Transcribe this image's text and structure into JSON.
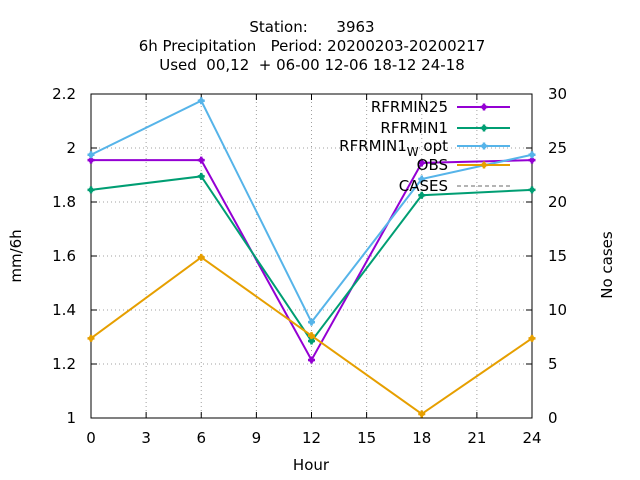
{
  "chart_data": {
    "type": "line",
    "title_lines": [
      "Station:      3963",
      "6h Precipitation   Period: 20200203-20200217",
      "Used  00,12  + 06-00 12-06 18-12 24-18"
    ],
    "xlabel": "Hour",
    "ylabel": "mm/6h",
    "y2label": "No cases",
    "x_ticks": [
      "0",
      "3",
      "6",
      "9",
      "12",
      "15",
      "18",
      "21",
      "24"
    ],
    "y_ticks": [
      "1",
      "1.2",
      "1.4",
      "1.6",
      "1.8",
      "2",
      "2.2"
    ],
    "y2_ticks": [
      "0",
      "5",
      "10",
      "15",
      "20",
      "25",
      "30"
    ],
    "xlim": [
      0,
      24
    ],
    "ylim": [
      1,
      2.2
    ],
    "y2lim": [
      0,
      30
    ],
    "grid": true,
    "legend_position": "top-right",
    "series": [
      {
        "name": "RFRMIN25",
        "legend_label": "RFRMIN25",
        "color": "#9400d3",
        "x": [
          0,
          6,
          12,
          18,
          24
        ],
        "values": [
          1.955,
          1.955,
          1.215,
          1.945,
          1.955
        ]
      },
      {
        "name": "RFRMIN1",
        "legend_label": "RFRMIN1",
        "color": "#009e73",
        "x": [
          0,
          6,
          12,
          18,
          24
        ],
        "values": [
          1.845,
          1.895,
          1.285,
          1.825,
          1.845
        ]
      },
      {
        "name": "RFRMIN1_w opt",
        "legend_label": "RFRMIN1",
        "legend_sub": "W",
        "legend_suffix": " opt",
        "color": "#56b4e9",
        "x": [
          0,
          6,
          12,
          18,
          24
        ],
        "values": [
          1.975,
          2.175,
          1.355,
          1.885,
          1.975
        ]
      },
      {
        "name": "OBS",
        "legend_label": "OBS",
        "color": "#e69f00",
        "x": [
          0,
          6,
          12,
          18,
          24
        ],
        "values": [
          1.295,
          1.595,
          1.305,
          1.015,
          1.295
        ]
      },
      {
        "name": "CASES",
        "legend_label": "CASES",
        "color": "#888888",
        "dashed": true,
        "x": [],
        "values": []
      }
    ]
  }
}
